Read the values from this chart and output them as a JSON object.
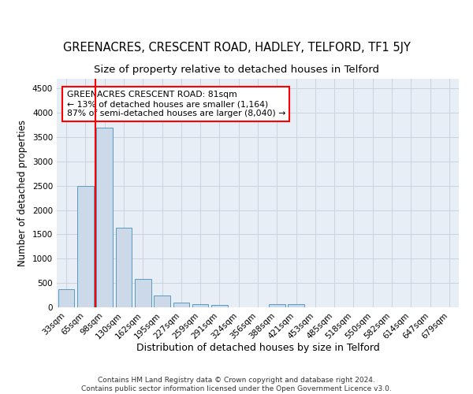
{
  "title": "GREENACRES, CRESCENT ROAD, HADLEY, TELFORD, TF1 5JY",
  "subtitle": "Size of property relative to detached houses in Telford",
  "xlabel": "Distribution of detached houses by size in Telford",
  "ylabel": "Number of detached properties",
  "footer_line1": "Contains HM Land Registry data © Crown copyright and database right 2024.",
  "footer_line2": "Contains public sector information licensed under the Open Government Licence v3.0.",
  "categories": [
    "33sqm",
    "65sqm",
    "98sqm",
    "130sqm",
    "162sqm",
    "195sqm",
    "227sqm",
    "259sqm",
    "291sqm",
    "324sqm",
    "356sqm",
    "388sqm",
    "421sqm",
    "453sqm",
    "485sqm",
    "518sqm",
    "550sqm",
    "582sqm",
    "614sqm",
    "647sqm",
    "679sqm"
  ],
  "values": [
    370,
    2500,
    3700,
    1630,
    590,
    240,
    105,
    60,
    45,
    0,
    0,
    60,
    60,
    0,
    0,
    0,
    0,
    0,
    0,
    0,
    0
  ],
  "bar_color": "#ccd9e8",
  "bar_edge_color": "#5a9abf",
  "vline_x": 1.5,
  "vline_color": "red",
  "annotation_text": "GREENACRES CRESCENT ROAD: 81sqm\n← 13% of detached houses are smaller (1,164)\n87% of semi-detached houses are larger (8,040) →",
  "annotation_box_color": "white",
  "annotation_box_edge_color": "red",
  "ylim": [
    0,
    4700
  ],
  "yticks": [
    0,
    500,
    1000,
    1500,
    2000,
    2500,
    3000,
    3500,
    4000,
    4500
  ],
  "bg_color": "#e8eef5",
  "grid_color": "#c8d4e0",
  "title_fontsize": 10.5,
  "subtitle_fontsize": 9.5,
  "tick_fontsize": 7.5,
  "ylabel_fontsize": 8.5,
  "xlabel_fontsize": 9
}
